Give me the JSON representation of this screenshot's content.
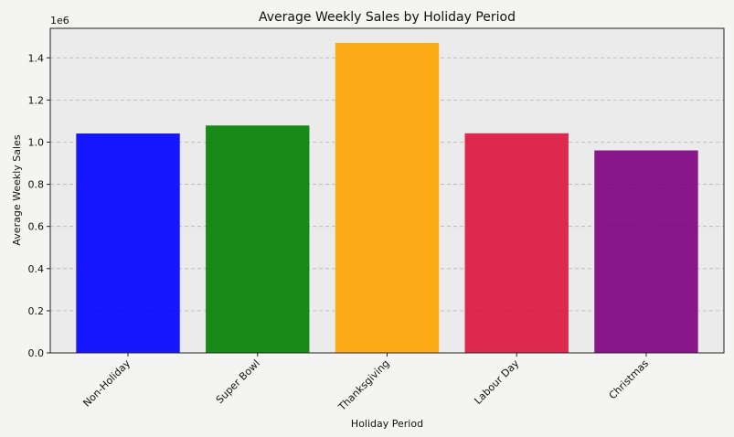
{
  "chart_data": {
    "type": "bar",
    "title": "Average Weekly Sales by Holiday Period",
    "xlabel": "Holiday Period",
    "ylabel": "Average Weekly Sales",
    "y_offset_label": "1e6",
    "categories": [
      "Non-Holiday",
      "Super Bowl",
      "Thanksgiving",
      "Labour Day",
      "Christmas"
    ],
    "values": [
      1041000,
      1079000,
      1471000,
      1042000,
      960800
    ],
    "colors": [
      "#0000ff",
      "#008000",
      "#ffa500",
      "#dc143c",
      "#800080"
    ],
    "ylim": [
      0,
      1540000
    ],
    "yticks": [
      0,
      200000,
      400000,
      600000,
      800000,
      1000000,
      1200000,
      1400000
    ],
    "ytick_labels": [
      "0.0",
      "0.2",
      "0.4",
      "0.6",
      "0.8",
      "1.0",
      "1.2",
      "1.4"
    ],
    "grid": "y-dashed",
    "xtick_rotation": 45
  }
}
